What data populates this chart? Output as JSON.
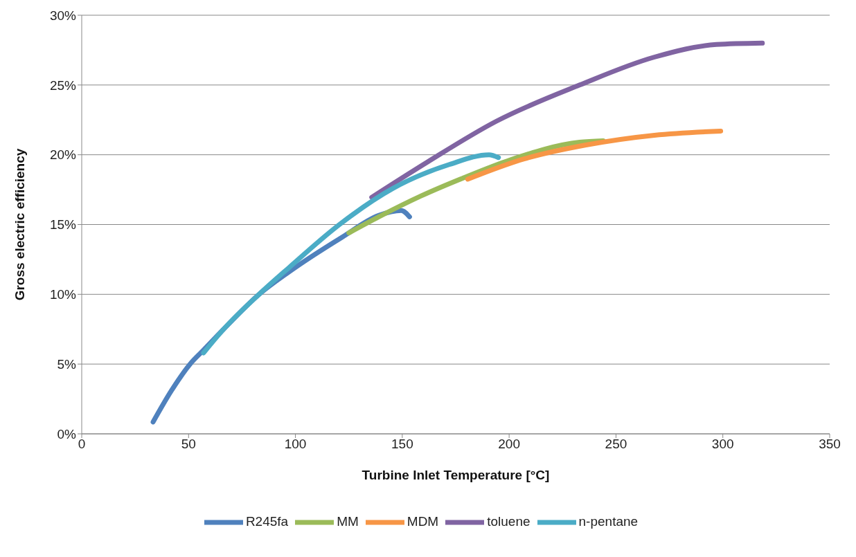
{
  "chart_data": {
    "type": "line",
    "xlabel": "Turbine Inlet Temperature [°C]",
    "ylabel": "Gross electric efficiency",
    "xlim": [
      0,
      350
    ],
    "xticks": [
      0,
      50,
      100,
      150,
      200,
      250,
      300,
      350
    ],
    "ylim": [
      0,
      30
    ],
    "yticks": [
      {
        "value": 0,
        "label": "0%"
      },
      {
        "value": 5,
        "label": "5%"
      },
      {
        "value": 10,
        "label": "10%"
      },
      {
        "value": 15,
        "label": "15%"
      },
      {
        "value": 20,
        "label": "20%"
      },
      {
        "value": 25,
        "label": "25%"
      },
      {
        "value": 30,
        "label": "30%"
      }
    ],
    "grid": "y",
    "legend": "bottom",
    "series": [
      {
        "name": "R245fa",
        "color": "#4f81bd",
        "x": [
          33.4,
          42,
          50.7,
          57,
          66.4,
          83,
          96.9,
          121.9,
          139,
          149.5,
          153.4
        ],
        "values": [
          0.85,
          3.1,
          5.0,
          6.0,
          7.5,
          10.0,
          11.6,
          14.1,
          15.65,
          16.0,
          15.55
        ]
      },
      {
        "name": "MM",
        "color": "#9bbb59",
        "x": [
          125,
          139,
          158.8,
          178.7,
          200.8,
          233,
          244
        ],
        "values": [
          14.4,
          15.55,
          17.05,
          18.35,
          19.65,
          20.9,
          21.0
        ]
      },
      {
        "name": "MDM",
        "color": "#f79646",
        "x": [
          180.6,
          207,
          236,
          268,
          299
        ],
        "values": [
          18.25,
          19.7,
          20.7,
          21.4,
          21.7
        ]
      },
      {
        "name": "toluene",
        "color": "#8064a2",
        "x": [
          135.7,
          162,
          194,
          233,
          268,
          297,
          318.5
        ],
        "values": [
          16.95,
          19.5,
          22.4,
          25.0,
          27.0,
          27.9,
          28.0
        ]
      },
      {
        "name": "n-pentane",
        "color": "#4bacc6",
        "x": [
          57,
          66.4,
          83,
          96.9,
          120.6,
          145.7,
          172,
          190.6,
          195
        ],
        "values": [
          5.8,
          7.5,
          10.0,
          11.9,
          15.0,
          17.6,
          19.3,
          20.0,
          19.8
        ]
      }
    ]
  }
}
